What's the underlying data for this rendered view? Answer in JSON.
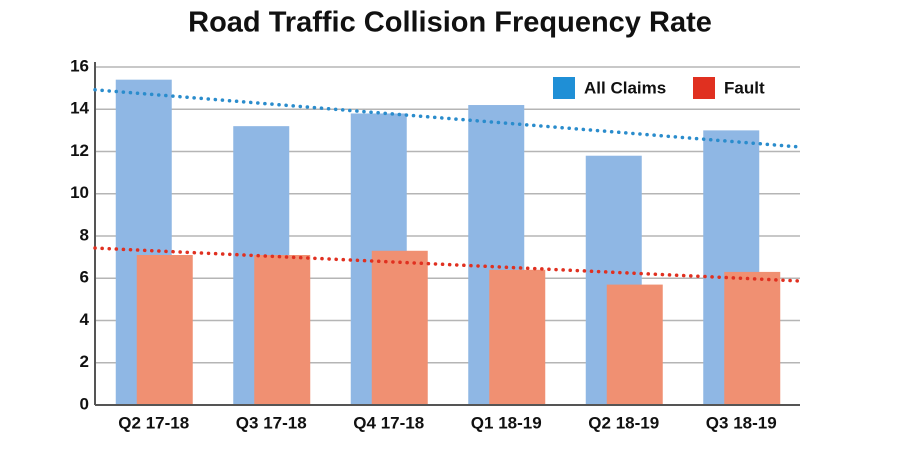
{
  "chart_data": {
    "type": "bar",
    "title": "Road Traffic Collision Frequency Rate",
    "categories": [
      "Q2 17-18",
      "Q3 17-18",
      "Q4 17-18",
      "Q1 18-19",
      "Q2 18-19",
      "Q3 18-19"
    ],
    "series": [
      {
        "name": "All Claims",
        "color": "#8fb7e4",
        "legend_color": "#1f8fd6",
        "trend_color": "#2a8ccc",
        "values": [
          15.4,
          13.2,
          13.8,
          14.2,
          11.8,
          13.0
        ]
      },
      {
        "name": "Fault",
        "color": "#f09072",
        "legend_color": "#e03020",
        "trend_color": "#e03020",
        "values": [
          7.1,
          7.1,
          7.3,
          6.4,
          5.7,
          6.3
        ]
      }
    ],
    "ylim": [
      0,
      16
    ],
    "yticks": [
      0,
      2,
      4,
      6,
      8,
      10,
      12,
      14,
      16
    ],
    "grid": true,
    "trendline": true,
    "legend": "top-right"
  }
}
